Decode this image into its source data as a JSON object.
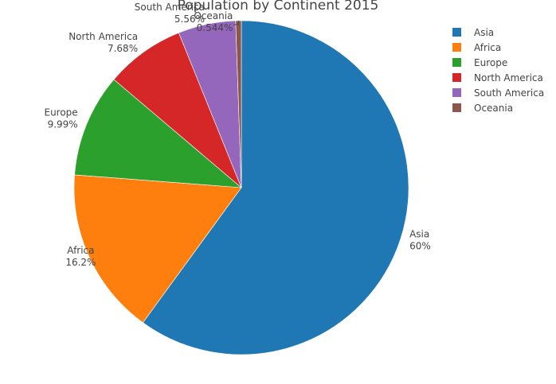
{
  "chart_data": {
    "type": "pie",
    "title": "Population by Continent 2015",
    "slices": [
      {
        "label": "Asia",
        "percent_text": "60%",
        "value": 60.0,
        "color": "#1f77b4"
      },
      {
        "label": "Africa",
        "percent_text": "16.2%",
        "value": 16.2,
        "color": "#ff7f0e"
      },
      {
        "label": "Europe",
        "percent_text": "9.99%",
        "value": 9.99,
        "color": "#2ca02c"
      },
      {
        "label": "North America",
        "percent_text": "7.68%",
        "value": 7.68,
        "color": "#d62728"
      },
      {
        "label": "South America",
        "percent_text": "5.56%",
        "value": 5.56,
        "color": "#9467bd"
      },
      {
        "label": "Oceania",
        "percent_text": "0.544%",
        "value": 0.544,
        "color": "#8c564b"
      }
    ],
    "legend_position": "top-right"
  }
}
